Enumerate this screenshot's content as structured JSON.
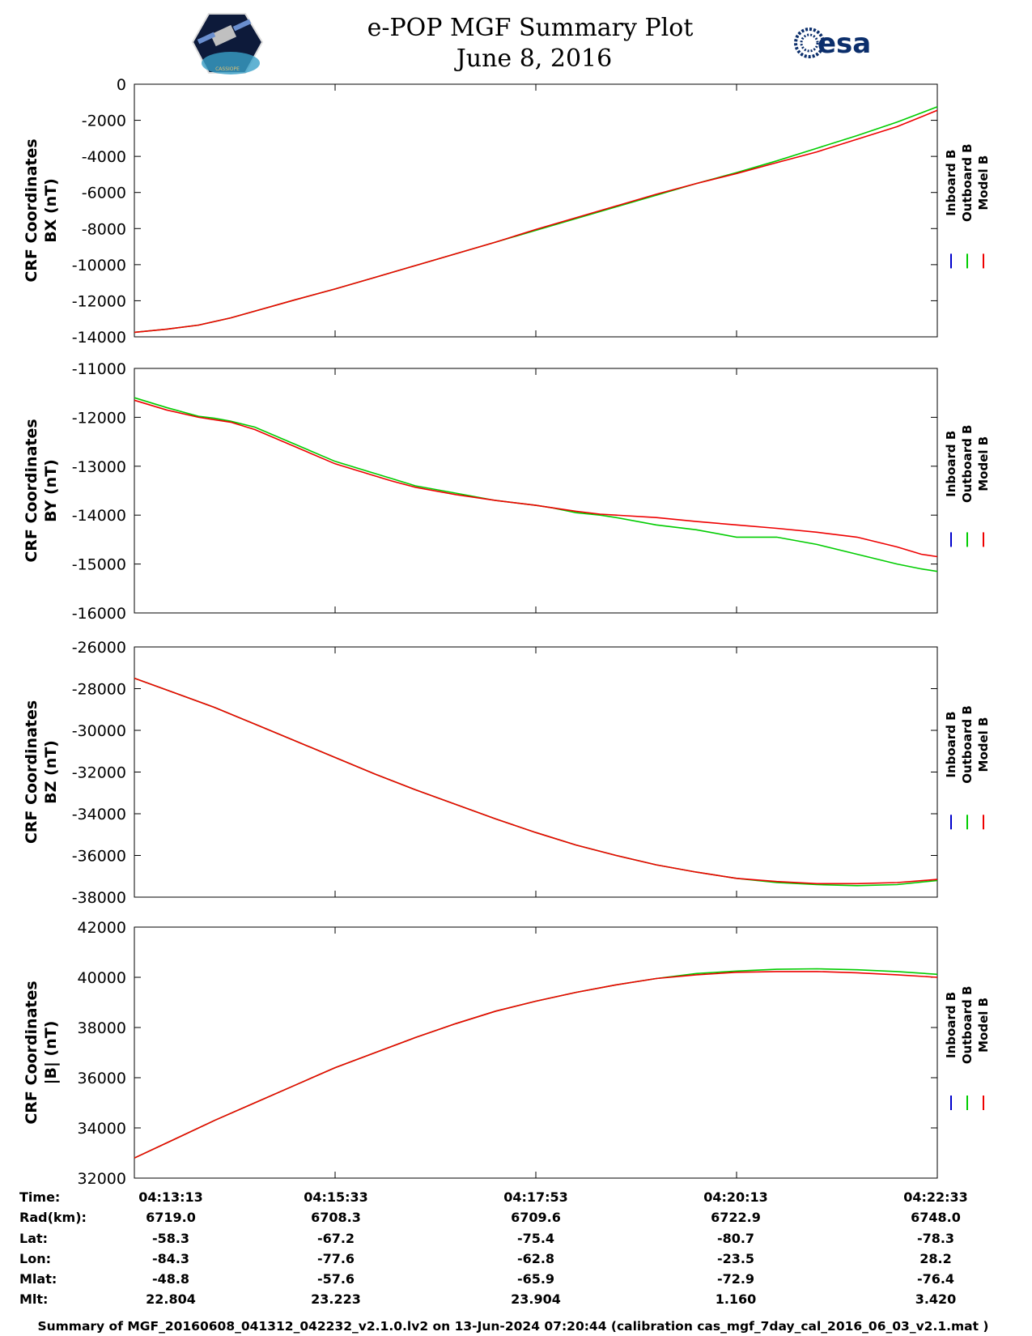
{
  "title": "e-POP MGF Summary Plot",
  "subtitle": "June 8, 2016",
  "logos": {
    "left": "CASSIOPE",
    "right": "esa"
  },
  "legend": [
    {
      "name": "Inboard B",
      "color": "#0000cc"
    },
    {
      "name": "Outboard B",
      "color": "#00cc00"
    },
    {
      "name": "Model B",
      "color": "#ee0000"
    }
  ],
  "chart_data": [
    {
      "type": "line",
      "ylabel_line1": "CRF Coordinates",
      "ylabel_line2": "BX (nT)",
      "ylim": [
        -14000,
        0
      ],
      "yticks": [
        0,
        -2000,
        -4000,
        -6000,
        -8000,
        -10000,
        -12000,
        -14000
      ],
      "ytick_labels": [
        "0",
        "-2000",
        "-4000",
        "-6000",
        "-8000",
        "-10000",
        "-12000",
        "-14000"
      ],
      "x": [
        0,
        0.04,
        0.08,
        0.12,
        0.16,
        0.2,
        0.25,
        0.3,
        0.35,
        0.4,
        0.45,
        0.5,
        0.55,
        0.6,
        0.65,
        0.7,
        0.75,
        0.8,
        0.85,
        0.9,
        0.95,
        1.0
      ],
      "series": [
        {
          "name": "Outboard B",
          "color": "#00cc00",
          "values": [
            -13750,
            -13580,
            -13350,
            -12950,
            -12450,
            -11950,
            -11350,
            -10700,
            -10050,
            -9400,
            -8750,
            -8100,
            -7450,
            -6800,
            -6150,
            -5500,
            -4900,
            -4250,
            -3550,
            -2850,
            -2100,
            -1250
          ]
        },
        {
          "name": "Model B",
          "color": "#ee0000",
          "values": [
            -13750,
            -13580,
            -13350,
            -12950,
            -12450,
            -11950,
            -11350,
            -10700,
            -10050,
            -9400,
            -8750,
            -8050,
            -7400,
            -6750,
            -6100,
            -5500,
            -4950,
            -4350,
            -3750,
            -3050,
            -2350,
            -1450
          ]
        }
      ]
    },
    {
      "type": "line",
      "ylabel_line1": "CRF Coordinates",
      "ylabel_line2": "BY (nT)",
      "ylim": [
        -16000,
        -11000
      ],
      "yticks": [
        -11000,
        -12000,
        -13000,
        -14000,
        -15000,
        -16000
      ],
      "ytick_labels": [
        "-11000",
        "-12000",
        "-13000",
        "-14000",
        "-15000",
        "-16000"
      ],
      "x": [
        0,
        0.04,
        0.08,
        0.1,
        0.12,
        0.15,
        0.2,
        0.25,
        0.3,
        0.32,
        0.35,
        0.4,
        0.45,
        0.5,
        0.52,
        0.55,
        0.58,
        0.6,
        0.65,
        0.7,
        0.75,
        0.8,
        0.85,
        0.9,
        0.95,
        0.98,
        1.0
      ],
      "series": [
        {
          "name": "Outboard B",
          "color": "#00cc00",
          "values": [
            -11600,
            -11800,
            -11980,
            -12020,
            -12080,
            -12200,
            -12550,
            -12900,
            -13150,
            -13250,
            -13400,
            -13550,
            -13700,
            -13800,
            -13850,
            -13950,
            -14000,
            -14050,
            -14200,
            -14300,
            -14450,
            -14450,
            -14600,
            -14800,
            -15000,
            -15100,
            -15150
          ]
        },
        {
          "name": "Model B",
          "color": "#ee0000",
          "values": [
            -11650,
            -11850,
            -12000,
            -12050,
            -12100,
            -12250,
            -12600,
            -12950,
            -13200,
            -13300,
            -13430,
            -13580,
            -13700,
            -13800,
            -13850,
            -13920,
            -13980,
            -14000,
            -14050,
            -14130,
            -14200,
            -14270,
            -14350,
            -14450,
            -14650,
            -14800,
            -14850
          ]
        }
      ]
    },
    {
      "type": "line",
      "ylabel_line1": "CRF Coordinates",
      "ylabel_line2": "BZ (nT)",
      "ylim": [
        -38000,
        -26000
      ],
      "yticks": [
        -26000,
        -28000,
        -30000,
        -32000,
        -34000,
        -36000,
        -38000
      ],
      "ytick_labels": [
        "-26000",
        "-28000",
        "-30000",
        "-32000",
        "-34000",
        "-36000",
        "-38000"
      ],
      "x": [
        0,
        0.05,
        0.1,
        0.15,
        0.2,
        0.25,
        0.3,
        0.35,
        0.4,
        0.45,
        0.5,
        0.55,
        0.6,
        0.65,
        0.7,
        0.75,
        0.8,
        0.85,
        0.9,
        0.95,
        1.0
      ],
      "series": [
        {
          "name": "Outboard B",
          "color": "#00cc00",
          "values": [
            -27500,
            -28200,
            -28900,
            -29700,
            -30500,
            -31300,
            -32100,
            -32850,
            -33550,
            -34250,
            -34900,
            -35500,
            -36000,
            -36450,
            -36800,
            -37100,
            -37300,
            -37400,
            -37450,
            -37400,
            -37200
          ]
        },
        {
          "name": "Model B",
          "color": "#ee0000",
          "values": [
            -27500,
            -28200,
            -28900,
            -29700,
            -30500,
            -31300,
            -32100,
            -32850,
            -33550,
            -34250,
            -34900,
            -35500,
            -36000,
            -36450,
            -36800,
            -37100,
            -37250,
            -37350,
            -37350,
            -37300,
            -37150
          ]
        }
      ]
    },
    {
      "type": "line",
      "ylabel_line1": "CRF Coordinates",
      "ylabel_line2": "|B| (nT)",
      "ylim": [
        32000,
        42000
      ],
      "yticks": [
        42000,
        40000,
        38000,
        36000,
        34000,
        32000
      ],
      "ytick_labels": [
        "42000",
        "40000",
        "38000",
        "36000",
        "34000",
        "32000"
      ],
      "x": [
        0,
        0.05,
        0.1,
        0.15,
        0.2,
        0.25,
        0.3,
        0.35,
        0.4,
        0.45,
        0.5,
        0.55,
        0.6,
        0.65,
        0.7,
        0.75,
        0.8,
        0.85,
        0.9,
        0.95,
        1.0
      ],
      "series": [
        {
          "name": "Outboard B",
          "color": "#00cc00",
          "values": [
            32800,
            33550,
            34300,
            35000,
            35700,
            36400,
            37000,
            37600,
            38150,
            38650,
            39050,
            39400,
            39700,
            39950,
            40150,
            40250,
            40320,
            40340,
            40300,
            40230,
            40120
          ]
        },
        {
          "name": "Model B",
          "color": "#ee0000",
          "values": [
            32800,
            33550,
            34300,
            35000,
            35700,
            36400,
            37000,
            37600,
            38150,
            38650,
            39050,
            39400,
            39700,
            39950,
            40100,
            40200,
            40230,
            40230,
            40180,
            40100,
            40000
          ]
        }
      ]
    }
  ],
  "info_table": {
    "labels": [
      "Time:",
      "Rad(km):",
      "Lat:",
      "Lon:",
      "Mlat:",
      "Mlt:"
    ],
    "columns": [
      [
        "04:13:13",
        "6719.0",
        "-58.3",
        "-84.3",
        "-48.8",
        "22.804"
      ],
      [
        "04:15:33",
        "6708.3",
        "-67.2",
        "-77.6",
        "-57.6",
        "23.223"
      ],
      [
        "04:17:53",
        "6709.6",
        "-75.4",
        "-62.8",
        "-65.9",
        "23.904"
      ],
      [
        "04:20:13",
        "6722.9",
        "-80.7",
        "-23.5",
        "-72.9",
        "1.160"
      ],
      [
        "04:22:33",
        "6748.0",
        "-78.3",
        "28.2",
        "-76.4",
        "3.420"
      ]
    ]
  },
  "footer": "Summary of MGF_20160608_041312_042232_v2.1.0.lv2 on 13-Jun-2024 07:20:44 (calibration cas_mgf_7day_cal_2016_06_03_v2.1.mat )"
}
